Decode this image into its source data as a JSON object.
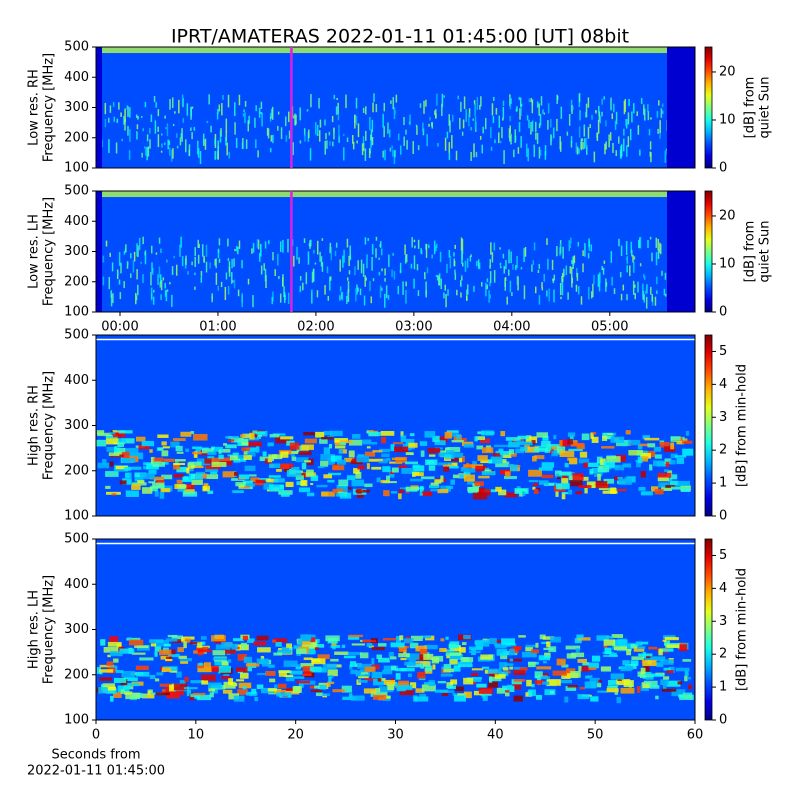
{
  "title": "IPRT/AMATERAS 2022-01-11 01:45:00 [UT]   08bit",
  "chart_data": [
    {
      "type": "heatmap",
      "ylabel": [
        "Low res. RH",
        "Frequency [MHz]"
      ],
      "xlim": [
        -0.245,
        5.87
      ],
      "ylim": [
        100,
        500
      ],
      "yticks": [
        100,
        200,
        300,
        400,
        500
      ],
      "marker": {
        "value": 1.75,
        "color": "#e020e0"
      },
      "colormap": "jet",
      "clim": [
        0,
        25.2
      ],
      "cticks": [
        0,
        10,
        20
      ],
      "clabel": [
        "[dB] from",
        "quiet Sun"
      ]
    },
    {
      "type": "heatmap",
      "ylabel": [
        "Low res. LH",
        "Frequency [MHz]"
      ],
      "xlim": [
        -0.245,
        5.87
      ],
      "xticks": [
        {
          "value": 0,
          "label": "00:00"
        },
        {
          "value": 1,
          "label": "01:00"
        },
        {
          "value": 2,
          "label": "02:00"
        },
        {
          "value": 3,
          "label": "03:00"
        },
        {
          "value": 4,
          "label": "04:00"
        },
        {
          "value": 5,
          "label": "05:00"
        }
      ],
      "ylim": [
        100,
        500
      ],
      "yticks": [
        100,
        200,
        300,
        400,
        500
      ],
      "marker": {
        "value": 1.75,
        "color": "#e020e0"
      },
      "colormap": "jet",
      "clim": [
        0,
        25.2
      ],
      "cticks": [
        0,
        10,
        20
      ],
      "clabel": [
        "[dB] from",
        "quiet Sun"
      ]
    },
    {
      "type": "heatmap",
      "ylabel": [
        "High res. RH",
        "Frequency [MHz]"
      ],
      "xlim": [
        0,
        60
      ],
      "ylim": [
        100,
        500
      ],
      "yticks": [
        100,
        200,
        300,
        400,
        500
      ],
      "colormap": "jet",
      "clim": [
        0,
        5.5
      ],
      "cticks": [
        0,
        1,
        2,
        3,
        4,
        5
      ],
      "clabel": [
        "[dB] from min-hold"
      ]
    },
    {
      "type": "heatmap",
      "ylabel": [
        "High res. LH",
        "Frequency [MHz]"
      ],
      "xlim": [
        0,
        60
      ],
      "xticks": [
        0,
        10,
        20,
        30,
        40,
        50,
        60
      ],
      "xlabel": [
        "Seconds from",
        "2022-01-11 01:45:00"
      ],
      "ylim": [
        100,
        500
      ],
      "yticks": [
        100,
        200,
        300,
        400,
        500
      ],
      "colormap": "jet",
      "clim": [
        0,
        5.5
      ],
      "cticks": [
        0,
        1,
        2,
        3,
        4,
        5
      ],
      "clabel": [
        "[dB] from min-hold"
      ]
    }
  ]
}
